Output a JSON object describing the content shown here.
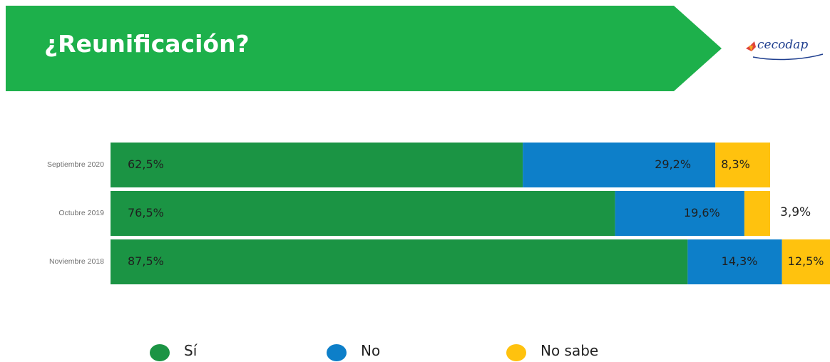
{
  "header": {
    "title": "¿Reunificación?",
    "logo_text": "cecodap",
    "banner_color": "#1db04b"
  },
  "chart_data": {
    "type": "bar",
    "orientation": "horizontal",
    "stacked": true,
    "categories": [
      "Septiembre 2020",
      "Octubre 2019",
      "Noviembre 2018"
    ],
    "series": [
      {
        "name": "Sí",
        "color": "#1b9444",
        "values": [
          62.5,
          76.5,
          87.5
        ],
        "labels": [
          "62,5%",
          "76,5%",
          "87,5%"
        ]
      },
      {
        "name": "No",
        "color": "#0d7fc9",
        "values": [
          29.2,
          19.6,
          14.3
        ],
        "labels": [
          "29,2%",
          "19,6%",
          "14,3%"
        ]
      },
      {
        "name": "No sabe",
        "color": "#ffc20e",
        "values": [
          8.3,
          3.9,
          12.5
        ],
        "labels": [
          "8,3%",
          "3,9%",
          "12,5%"
        ]
      }
    ],
    "legend_position": "bottom",
    "grid": false
  }
}
